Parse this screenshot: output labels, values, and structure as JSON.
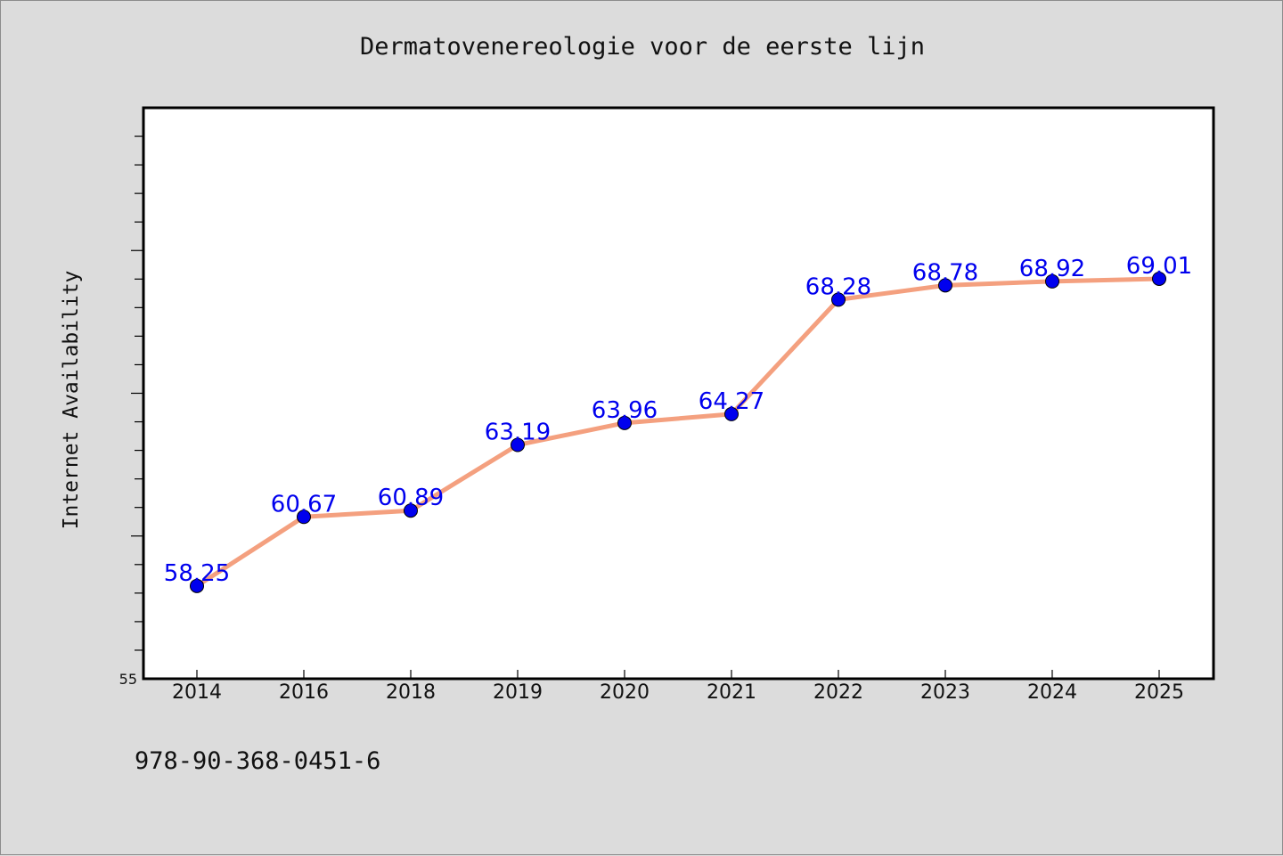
{
  "chart_data": {
    "type": "line",
    "title": "Dermatovenereologie voor de eerste lijn",
    "xlabel": "",
    "ylabel": "Internet Availability",
    "categories": [
      "2014",
      "2016",
      "2018",
      "2019",
      "2020",
      "2021",
      "2022",
      "2023",
      "2024",
      "2025"
    ],
    "series": [
      {
        "values": [
          58.25,
          60.67,
          60.89,
          63.19,
          63.96,
          64.27,
          68.28,
          68.78,
          68.92,
          69.01
        ],
        "labels": [
          "58.25",
          "60.67",
          "60.89",
          "63.19",
          "63.96",
          "64.27",
          "68.28",
          "68.78",
          "68.92",
          "69.01"
        ],
        "line_color": "#f4a07f",
        "marker_color": "#0000ee"
      }
    ],
    "ylim": [
      55,
      75
    ],
    "yticks_labeled": [
      "55"
    ],
    "grid": false,
    "legend": "none"
  },
  "footer": {
    "isbn": "978-90-368-0451-6"
  },
  "colors": {
    "background": "#dcdcdc",
    "plot_background": "#ffffff",
    "label_color": "#0000ee"
  }
}
